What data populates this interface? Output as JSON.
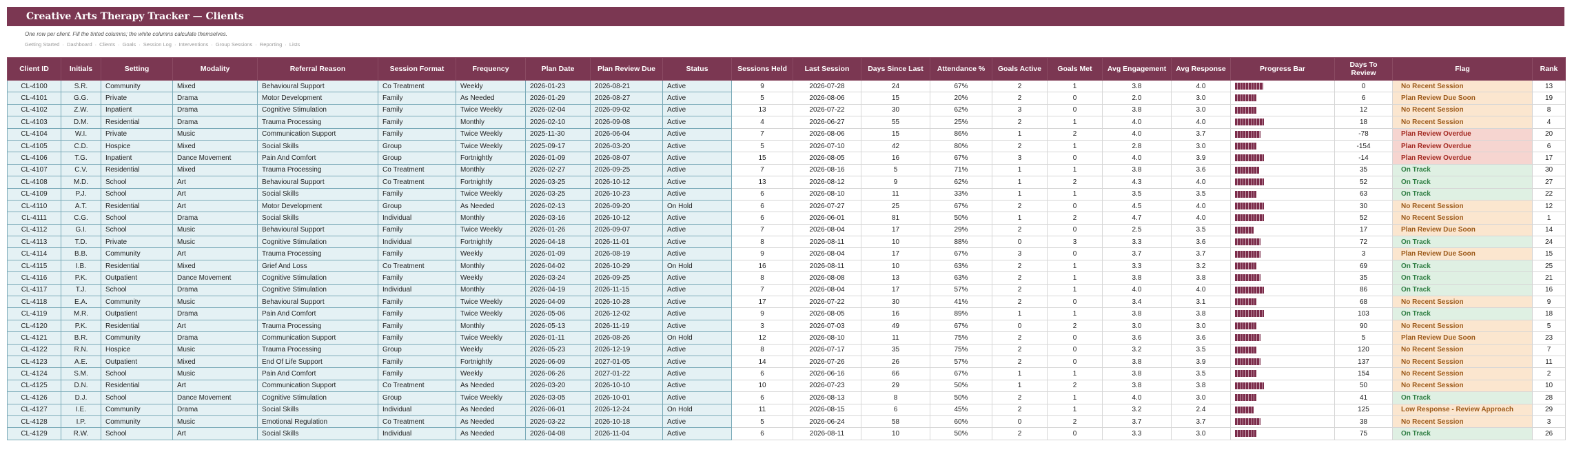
{
  "title": "Creative Arts Therapy Tracker — Clients",
  "subtitle": "One row per client. Fill the tinted columns; the white columns calculate themselves.",
  "nav": [
    "Getting Started",
    "Dashboard",
    "Clients",
    "Goals",
    "Session Log",
    "Interventions",
    "Group Sessions",
    "Reporting",
    "Lists"
  ],
  "columns": [
    "Client ID",
    "Initials",
    "Setting",
    "Modality",
    "Referral Reason",
    "Session Format",
    "Frequency",
    "Plan Date",
    "Plan Review Due",
    "Status",
    "Sessions Held",
    "Last Session",
    "Days Since Last",
    "Attendance %",
    "Goals Active",
    "Goals Met",
    "Avg Engagement",
    "Avg Response",
    "Progress Bar",
    "Days To Review",
    "Flag",
    "Rank"
  ],
  "flag_colors": {
    "No Recent Session": {
      "bg": "#fbe6cf",
      "fg": "#9c5a1a"
    },
    "Plan Review Due Soon": {
      "bg": "#fbe6cf",
      "fg": "#9c5a1a"
    },
    "Plan Review Overdue": {
      "bg": "#f6d5d0",
      "fg": "#a32a22"
    },
    "On Track": {
      "bg": "#dff0e3",
      "fg": "#2e7d42"
    },
    "Low Response - Review Approach": {
      "bg": "#fbe6cf",
      "fg": "#9c5a1a"
    }
  },
  "rows": [
    [
      "CL-4100",
      "S.R.",
      "Community",
      "Mixed",
      "Behavioural Support",
      "Co Treatment",
      "Weekly",
      "2026-01-23",
      "2026-08-21",
      "Active",
      "9",
      "2026-07-28",
      "24",
      "67%",
      "2",
      "1",
      "3.8",
      "4.0",
      0.6,
      "0",
      "No Recent Session",
      "13"
    ],
    [
      "CL-4101",
      "G.G.",
      "Private",
      "Drama",
      "Motor Development",
      "Family",
      "As Needed",
      "2026-01-29",
      "2026-08-27",
      "Active",
      "5",
      "2026-08-06",
      "15",
      "20%",
      "2",
      "0",
      "2.0",
      "3.0",
      0.45,
      "6",
      "Plan Review Due Soon",
      "19"
    ],
    [
      "CL-4102",
      "Z.W.",
      "Inpatient",
      "Drama",
      "Cognitive Stimulation",
      "Family",
      "Twice Weekly",
      "2026-02-04",
      "2026-09-02",
      "Active",
      "13",
      "2026-07-22",
      "30",
      "62%",
      "3",
      "0",
      "3.8",
      "3.0",
      0.45,
      "12",
      "No Recent Session",
      "8"
    ],
    [
      "CL-4103",
      "D.M.",
      "Residential",
      "Drama",
      "Trauma Processing",
      "Family",
      "Monthly",
      "2026-02-10",
      "2026-09-08",
      "Active",
      "4",
      "2026-06-27",
      "55",
      "25%",
      "2",
      "1",
      "4.0",
      "4.0",
      0.62,
      "18",
      "No Recent Session",
      "4"
    ],
    [
      "CL-4104",
      "W.I.",
      "Private",
      "Music",
      "Communication Support",
      "Family",
      "Twice Weekly",
      "2025-11-30",
      "2026-06-04",
      "Active",
      "7",
      "2026-08-06",
      "15",
      "86%",
      "1",
      "2",
      "4.0",
      "3.7",
      0.55,
      "-78",
      "Plan Review Overdue",
      "20"
    ],
    [
      "CL-4105",
      "C.D.",
      "Hospice",
      "Mixed",
      "Social Skills",
      "Group",
      "Twice Weekly",
      "2025-09-17",
      "2026-03-20",
      "Active",
      "5",
      "2026-07-10",
      "42",
      "80%",
      "2",
      "1",
      "2.8",
      "3.0",
      0.45,
      "-154",
      "Plan Review Overdue",
      "6"
    ],
    [
      "CL-4106",
      "T.G.",
      "Inpatient",
      "Dance Movement",
      "Pain And Comfort",
      "Group",
      "Fortnightly",
      "2026-01-09",
      "2026-08-07",
      "Active",
      "15",
      "2026-08-05",
      "16",
      "67%",
      "3",
      "0",
      "4.0",
      "3.9",
      0.62,
      "-14",
      "Plan Review Overdue",
      "17"
    ],
    [
      "CL-4107",
      "C.V.",
      "Residential",
      "Mixed",
      "Trauma Processing",
      "Co Treatment",
      "Monthly",
      "2026-02-27",
      "2026-09-25",
      "Active",
      "7",
      "2026-08-16",
      "5",
      "71%",
      "1",
      "1",
      "3.8",
      "3.6",
      0.52,
      "35",
      "On Track",
      "30"
    ],
    [
      "CL-4108",
      "M.D.",
      "School",
      "Art",
      "Behavioural Support",
      "Co Treatment",
      "Fortnightly",
      "2026-03-25",
      "2026-10-12",
      "Active",
      "13",
      "2026-08-12",
      "9",
      "62%",
      "1",
      "2",
      "4.3",
      "4.0",
      0.62,
      "52",
      "On Track",
      "27"
    ],
    [
      "CL-4109",
      "P.J.",
      "School",
      "Art",
      "Social Skills",
      "Family",
      "Twice Weekly",
      "2026-03-25",
      "2026-10-23",
      "Active",
      "6",
      "2026-08-10",
      "11",
      "33%",
      "1",
      "1",
      "3.5",
      "3.5",
      0.45,
      "63",
      "On Track",
      "22"
    ],
    [
      "CL-4110",
      "A.T.",
      "Residential",
      "Art",
      "Motor Development",
      "Group",
      "As Needed",
      "2026-02-13",
      "2026-09-20",
      "On Hold",
      "6",
      "2026-07-27",
      "25",
      "67%",
      "2",
      "0",
      "4.5",
      "4.0",
      0.62,
      "30",
      "No Recent Session",
      "12"
    ],
    [
      "CL-4111",
      "C.G.",
      "School",
      "Drama",
      "Social Skills",
      "Individual",
      "Monthly",
      "2026-03-16",
      "2026-10-12",
      "Active",
      "6",
      "2026-06-01",
      "81",
      "50%",
      "1",
      "2",
      "4.7",
      "4.0",
      0.62,
      "52",
      "No Recent Session",
      "1"
    ],
    [
      "CL-4112",
      "G.I.",
      "School",
      "Music",
      "Behavioural Support",
      "Family",
      "Twice Weekly",
      "2026-01-26",
      "2026-09-07",
      "Active",
      "7",
      "2026-08-04",
      "17",
      "29%",
      "2",
      "0",
      "2.5",
      "3.5",
      0.4,
      "17",
      "Plan Review Due Soon",
      "14"
    ],
    [
      "CL-4113",
      "T.D.",
      "Private",
      "Music",
      "Cognitive Stimulation",
      "Individual",
      "Fortnightly",
      "2026-04-18",
      "2026-11-01",
      "Active",
      "8",
      "2026-08-11",
      "10",
      "88%",
      "0",
      "3",
      "3.3",
      "3.6",
      0.55,
      "72",
      "On Track",
      "24"
    ],
    [
      "CL-4114",
      "B.B.",
      "Community",
      "Art",
      "Trauma Processing",
      "Family",
      "Weekly",
      "2026-01-09",
      "2026-08-19",
      "Active",
      "9",
      "2026-08-04",
      "17",
      "67%",
      "3",
      "0",
      "3.7",
      "3.7",
      0.55,
      "3",
      "Plan Review Due Soon",
      "15"
    ],
    [
      "CL-4115",
      "I.B.",
      "Residential",
      "Mixed",
      "Grief And Loss",
      "Co Treatment",
      "Monthly",
      "2026-04-02",
      "2026-10-29",
      "On Hold",
      "16",
      "2026-08-11",
      "10",
      "63%",
      "2",
      "1",
      "3.3",
      "3.2",
      0.45,
      "69",
      "On Track",
      "25"
    ],
    [
      "CL-4116",
      "P.K.",
      "Outpatient",
      "Dance Movement",
      "Cognitive Stimulation",
      "Family",
      "Weekly",
      "2026-03-24",
      "2026-09-25",
      "Active",
      "8",
      "2026-08-08",
      "13",
      "63%",
      "2",
      "1",
      "3.8",
      "3.8",
      0.55,
      "35",
      "On Track",
      "21"
    ],
    [
      "CL-4117",
      "T.J.",
      "School",
      "Drama",
      "Cognitive Stimulation",
      "Individual",
      "Monthly",
      "2026-04-19",
      "2026-11-15",
      "Active",
      "7",
      "2026-08-04",
      "17",
      "57%",
      "2",
      "1",
      "4.0",
      "4.0",
      0.62,
      "86",
      "On Track",
      "16"
    ],
    [
      "CL-4118",
      "E.A.",
      "Community",
      "Music",
      "Behavioural Support",
      "Family",
      "Twice Weekly",
      "2026-04-09",
      "2026-10-28",
      "Active",
      "17",
      "2026-07-22",
      "30",
      "41%",
      "2",
      "0",
      "3.4",
      "3.1",
      0.45,
      "68",
      "No Recent Session",
      "9"
    ],
    [
      "CL-4119",
      "M.R.",
      "Outpatient",
      "Drama",
      "Pain And Comfort",
      "Family",
      "Twice Weekly",
      "2026-05-06",
      "2026-12-02",
      "Active",
      "9",
      "2026-08-05",
      "16",
      "89%",
      "1",
      "1",
      "3.8",
      "3.8",
      0.62,
      "103",
      "On Track",
      "18"
    ],
    [
      "CL-4120",
      "P.K.",
      "Residential",
      "Art",
      "Trauma Processing",
      "Family",
      "Monthly",
      "2026-05-13",
      "2026-11-19",
      "Active",
      "3",
      "2026-07-03",
      "49",
      "67%",
      "0",
      "2",
      "3.0",
      "3.0",
      0.45,
      "90",
      "No Recent Session",
      "5"
    ],
    [
      "CL-4121",
      "B.R.",
      "Community",
      "Drama",
      "Communication Support",
      "Family",
      "Twice Weekly",
      "2026-01-11",
      "2026-08-26",
      "On Hold",
      "12",
      "2026-08-10",
      "11",
      "75%",
      "2",
      "0",
      "3.6",
      "3.6",
      0.55,
      "5",
      "Plan Review Due Soon",
      "23"
    ],
    [
      "CL-4122",
      "R.N.",
      "Hospice",
      "Music",
      "Trauma Processing",
      "Group",
      "Weekly",
      "2026-05-23",
      "2026-12-19",
      "Active",
      "8",
      "2026-07-17",
      "35",
      "75%",
      "2",
      "0",
      "3.2",
      "3.5",
      0.45,
      "120",
      "No Recent Session",
      "7"
    ],
    [
      "CL-4123",
      "A.E.",
      "Outpatient",
      "Mixed",
      "End Of Life Support",
      "Family",
      "Fortnightly",
      "2026-06-09",
      "2027-01-05",
      "Active",
      "14",
      "2026-07-26",
      "26",
      "57%",
      "2",
      "0",
      "3.8",
      "3.9",
      0.55,
      "137",
      "No Recent Session",
      "11"
    ],
    [
      "CL-4124",
      "S.M.",
      "School",
      "Music",
      "Pain And Comfort",
      "Family",
      "Weekly",
      "2026-06-26",
      "2027-01-22",
      "Active",
      "6",
      "2026-06-16",
      "66",
      "67%",
      "1",
      "1",
      "3.8",
      "3.5",
      0.45,
      "154",
      "No Recent Session",
      "2"
    ],
    [
      "CL-4125",
      "D.N.",
      "Residential",
      "Art",
      "Communication Support",
      "Co Treatment",
      "As Needed",
      "2026-03-20",
      "2026-10-10",
      "Active",
      "10",
      "2026-07-23",
      "29",
      "50%",
      "1",
      "2",
      "3.8",
      "3.8",
      0.62,
      "50",
      "No Recent Session",
      "10"
    ],
    [
      "CL-4126",
      "D.J.",
      "School",
      "Dance Movement",
      "Cognitive Stimulation",
      "Group",
      "Twice Weekly",
      "2026-03-05",
      "2026-10-01",
      "Active",
      "6",
      "2026-08-13",
      "8",
      "50%",
      "2",
      "1",
      "4.0",
      "3.0",
      0.45,
      "41",
      "On Track",
      "28"
    ],
    [
      "CL-4127",
      "I.E.",
      "Community",
      "Drama",
      "Social Skills",
      "Individual",
      "As Needed",
      "2026-06-01",
      "2026-12-24",
      "On Hold",
      "11",
      "2026-08-15",
      "6",
      "45%",
      "2",
      "1",
      "3.2",
      "2.4",
      0.4,
      "125",
      "Low Response - Review Approach",
      "29"
    ],
    [
      "CL-4128",
      "I.P.",
      "Community",
      "Music",
      "Emotional Regulation",
      "Co Treatment",
      "As Needed",
      "2026-03-22",
      "2026-10-18",
      "Active",
      "5",
      "2026-06-24",
      "58",
      "60%",
      "0",
      "2",
      "3.7",
      "3.7",
      0.55,
      "38",
      "No Recent Session",
      "3"
    ],
    [
      "CL-4129",
      "R.W.",
      "School",
      "Art",
      "Social Skills",
      "Individual",
      "As Needed",
      "2026-04-08",
      "2026-11-04",
      "Active",
      "6",
      "2026-08-11",
      "10",
      "50%",
      "2",
      "0",
      "3.3",
      "3.0",
      0.45,
      "75",
      "On Track",
      "26"
    ]
  ]
}
